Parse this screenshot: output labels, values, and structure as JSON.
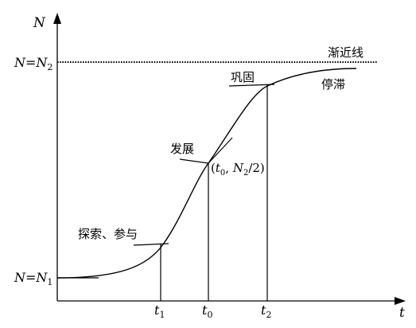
{
  "axes": {
    "y_label": "N",
    "x_label": "t"
  },
  "levels": {
    "upper": {
      "var": "N",
      "eq": "=",
      "sym": "N",
      "sub": "2"
    },
    "lower": {
      "var": "N",
      "eq": "=",
      "sym": "N",
      "sub": "1"
    }
  },
  "x_ticks": [
    {
      "sym": "t",
      "sub": "1"
    },
    {
      "sym": "t",
      "sub": "0"
    },
    {
      "sym": "t",
      "sub": "2"
    }
  ],
  "midpoint": {
    "open": "(",
    "t": "t",
    "t_sub": "0",
    "sep": ", ",
    "n": "N",
    "n_sub": "2",
    "tail": "/2)"
  },
  "stages": {
    "asymptote": "渐近线",
    "explore": "探索、参与",
    "develop": "发展",
    "consolidate": "巩固",
    "stagnate": "停滞"
  },
  "colors": {
    "line": "#000000",
    "background": "#ffffff"
  }
}
